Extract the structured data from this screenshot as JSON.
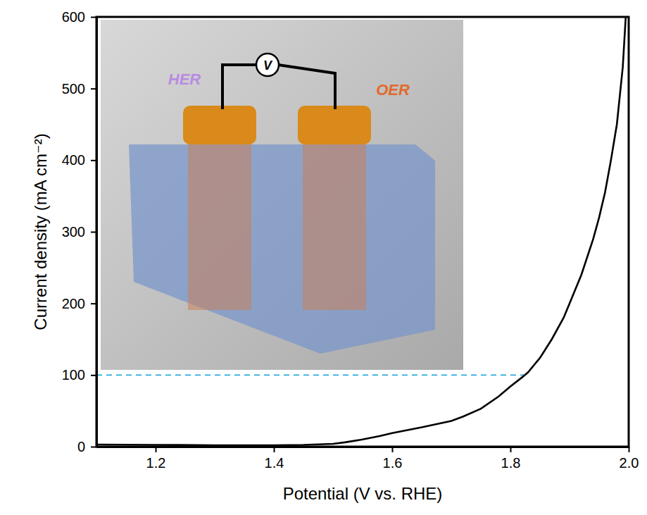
{
  "chart_data": {
    "type": "line",
    "x_label": "Potential (V vs. RHE)",
    "y_label": "Current density (mA cm⁻²)",
    "xlim": [
      1.1,
      2.0
    ],
    "ylim": [
      0,
      600
    ],
    "xticks": [
      1.2,
      1.4,
      1.6,
      1.8,
      {
        "value": 2.0,
        "label": "2.0"
      }
    ],
    "yticks": [
      0,
      100,
      200,
      300,
      400,
      500,
      600
    ],
    "grid": false,
    "series": [
      {
        "color": "#000000",
        "line_style": "solid",
        "x": [
          1.1,
          1.2,
          1.3,
          1.4,
          1.45,
          1.5,
          1.52,
          1.55,
          1.58,
          1.6,
          1.65,
          1.7,
          1.72,
          1.75,
          1.78,
          1.8,
          1.82,
          1.83,
          1.85,
          1.87,
          1.89,
          1.9,
          1.92,
          1.94,
          1.95,
          1.96,
          1.97,
          1.98,
          1.99,
          1.995
        ],
        "values": [
          3,
          2.5,
          2,
          2,
          2.5,
          4,
          6,
          10,
          15,
          19,
          27,
          36,
          42,
          53,
          70,
          84,
          97,
          104,
          124,
          150,
          180,
          200,
          240,
          290,
          320,
          355,
          400,
          450,
          530,
          600
        ]
      }
    ],
    "reference_line": {
      "x": [
        1.1,
        1.83
      ],
      "values": [
        100,
        100
      ],
      "color": "#29a9e0",
      "line_style": "dashed"
    },
    "annotations": [
      {
        "text": "HER",
        "color": "#b98be3"
      },
      {
        "text": "OER",
        "color": "#e2692c"
      },
      {
        "text": "V",
        "color": "#000000"
      }
    ]
  }
}
